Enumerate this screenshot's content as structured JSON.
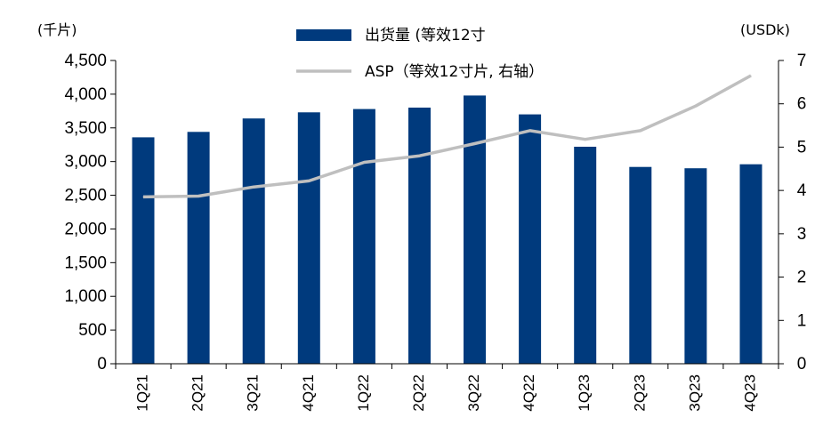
{
  "chart_data": {
    "type": "bar",
    "categories": [
      "1Q21",
      "2Q21",
      "3Q21",
      "4Q21",
      "1Q22",
      "2Q22",
      "3Q22",
      "4Q22",
      "1Q23",
      "2Q23",
      "3Q23",
      "4Q23"
    ],
    "series": [
      {
        "name": "出货量 (等效12寸",
        "type": "bar",
        "axis": "left",
        "color": "#003A7D",
        "values": [
          3360,
          3440,
          3640,
          3730,
          3780,
          3800,
          3980,
          3700,
          3220,
          2920,
          2900,
          2960
        ]
      },
      {
        "name": "ASP（等效12寸片, 右轴）",
        "type": "line",
        "axis": "right",
        "color": "#BFBFBF",
        "values": [
          3.85,
          3.87,
          4.08,
          4.22,
          4.65,
          4.8,
          5.08,
          5.38,
          5.18,
          5.38,
          5.95,
          6.65
        ]
      }
    ],
    "y_left": {
      "unit_label": "(千片)",
      "ylim": [
        0,
        4500
      ],
      "ticks": [
        0,
        500,
        1000,
        1500,
        2000,
        2500,
        3000,
        3500,
        4000,
        4500
      ],
      "tick_labels": [
        "0",
        "500",
        "1,000",
        "1,500",
        "2,000",
        "2,500",
        "3,000",
        "3,500",
        "4,000",
        "4,500"
      ]
    },
    "y_right": {
      "unit_label": "(USDk)",
      "ylim": [
        0,
        7
      ],
      "ticks": [
        0,
        1,
        2,
        3,
        4,
        5,
        6,
        7
      ],
      "tick_labels": [
        "0",
        "1",
        "2",
        "3",
        "4",
        "5",
        "6",
        "7"
      ]
    },
    "grid": false,
    "legend_position": "top-center"
  }
}
